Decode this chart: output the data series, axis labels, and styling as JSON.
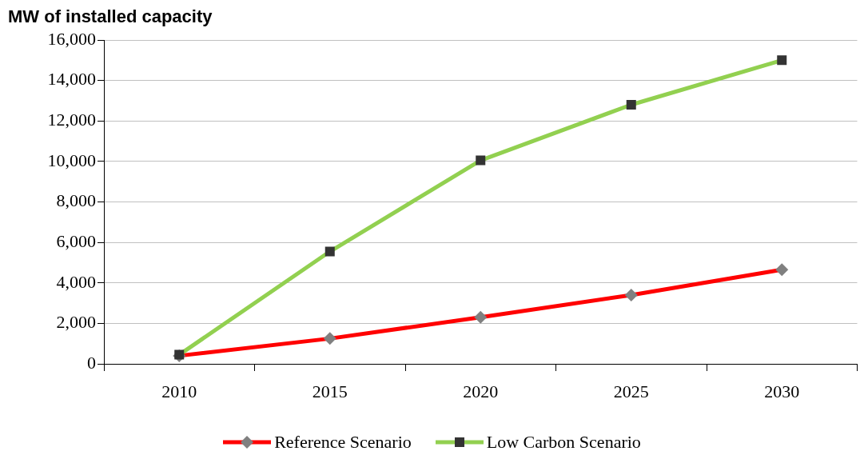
{
  "chart_data": {
    "type": "line",
    "ylabel": "MW of installed capacity",
    "categories": [
      "2010",
      "2015",
      "2020",
      "2025",
      "2030"
    ],
    "series": [
      {
        "name": "Reference Scenario",
        "color": "#ff0000",
        "marker": "diamond",
        "values": [
          400,
          1250,
          2300,
          3400,
          4650
        ]
      },
      {
        "name": "Low Carbon Scenario",
        "color": "#92d050",
        "marker": "square",
        "values": [
          450,
          5550,
          10050,
          12800,
          15000
        ]
      }
    ],
    "ylim": [
      0,
      16000
    ],
    "yticks": [
      0,
      {
        "value": 2000,
        "label": "2,000"
      },
      {
        "value": 4000,
        "label": "4,000"
      },
      {
        "value": 6000,
        "label": "6,000"
      },
      {
        "value": 8000,
        "label": "8,000"
      },
      {
        "value": 10000,
        "label": "10,000"
      },
      {
        "value": 12000,
        "label": "12,000"
      },
      {
        "value": 14000,
        "label": "14,000"
      },
      {
        "value": 16000,
        "label": "16,000"
      }
    ],
    "grid": "y",
    "legend": "bottom",
    "line_style": "solid"
  }
}
